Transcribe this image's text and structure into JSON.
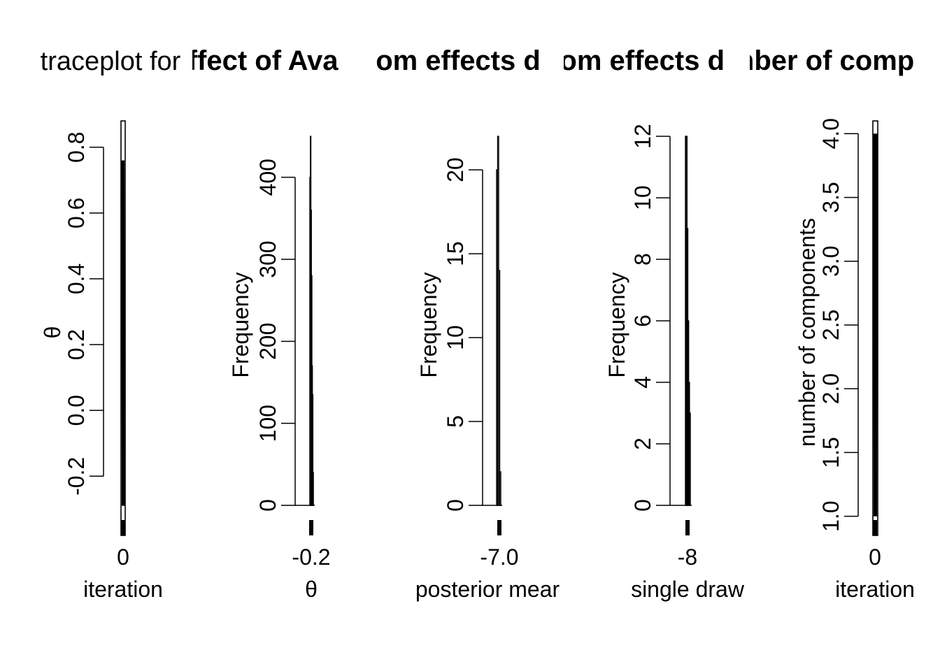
{
  "chart_data": [
    {
      "type": "line",
      "title": "traceplot for",
      "xlabel": "iteration",
      "ylabel": "θ",
      "x_ticks": [
        "0"
      ],
      "y_ticks": [
        -0.2,
        0.0,
        0.2,
        0.4,
        0.6,
        0.8
      ],
      "ylim": [
        -0.38,
        0.88
      ],
      "series": [
        {
          "values": [
            0.76,
            -0.15,
            0.75,
            0.74,
            -0.29
          ]
        }
      ]
    },
    {
      "type": "bar",
      "title": "effect of Ava",
      "xlabel": "θ",
      "ylabel": "Frequency",
      "x_ticks": [
        "-0.2"
      ],
      "y_ticks": [
        0,
        100,
        200,
        300,
        400
      ],
      "ylim": [
        0,
        450
      ],
      "values": [
        400,
        450,
        360,
        280,
        170,
        135,
        40
      ]
    },
    {
      "type": "bar",
      "title": "rdom effects d",
      "xlabel": "posterior mear",
      "ylabel": "Frequency",
      "x_ticks": [
        "-7.0"
      ],
      "y_ticks": [
        0,
        5,
        10,
        15,
        20
      ],
      "ylim": [
        0,
        22
      ],
      "values": [
        20,
        22,
        14,
        2
      ]
    },
    {
      "type": "bar",
      "title": "dom effects d",
      "xlabel": "single draw",
      "ylabel": "Frequency",
      "x_ticks": [
        "-8"
      ],
      "y_ticks": [
        0,
        2,
        4,
        6,
        8,
        10,
        12
      ],
      "ylim": [
        0,
        12
      ],
      "values": [
        12,
        12,
        9,
        6,
        4,
        3
      ]
    },
    {
      "type": "line",
      "title": "mber of comp",
      "xlabel": "iteration",
      "ylabel": "number of components",
      "x_ticks": [
        "0"
      ],
      "y_ticks": [
        "1.0",
        "1.5",
        "2.0",
        "2.5",
        "3.0",
        "3.5",
        "4.0"
      ],
      "ylim": [
        0.85,
        4.1
      ],
      "series": [
        {
          "values": [
            4,
            1,
            4,
            3,
            1,
            4
          ]
        }
      ]
    }
  ]
}
